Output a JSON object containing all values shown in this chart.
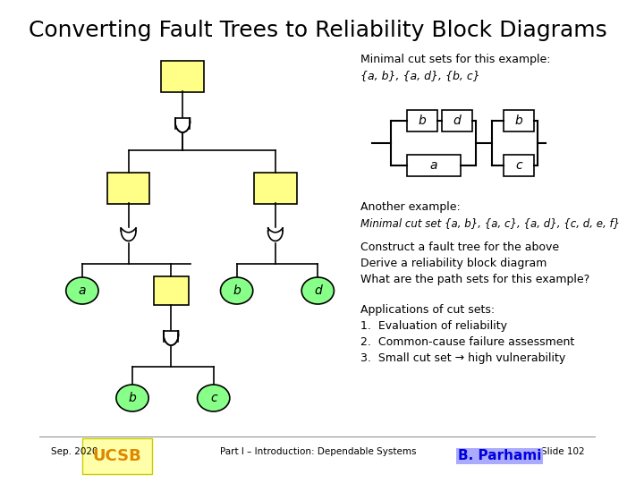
{
  "title": "Converting Fault Trees to Reliability Block Diagrams",
  "bg_color": "#ffffff",
  "title_fontsize": 18,
  "yellow_fill": "#ffff88",
  "green_fill": "#88ff88",
  "white_fill": "#ffffff",
  "gate_fill": "#ffffff",
  "line_color": "#000000",
  "text_blocks": {
    "minimal_cut_header": "Minimal cut sets for this example:",
    "minimal_cut_sets": "{a, b}, {a, d}, {b, c}",
    "another_example_header": "Another example:",
    "another_example_sets": "Minimal cut set {a, b}, {a, c}, {a, d}, {c, d, e, f}",
    "construct_line1": "Construct a fault tree for the above",
    "construct_line2": "Derive a reliability block diagram",
    "construct_line3": "What are the path sets for this example?",
    "apps_header": "Applications of cut sets:",
    "app1": "1.  Evaluation of reliability",
    "app2": "2.  Common-cause failure assessment",
    "app3": "3.  Small cut set → high vulnerability"
  },
  "footer": {
    "left": "Sep. 2020",
    "center": "Part I – Introduction: Dependable Systems",
    "right": "Slide 102"
  }
}
